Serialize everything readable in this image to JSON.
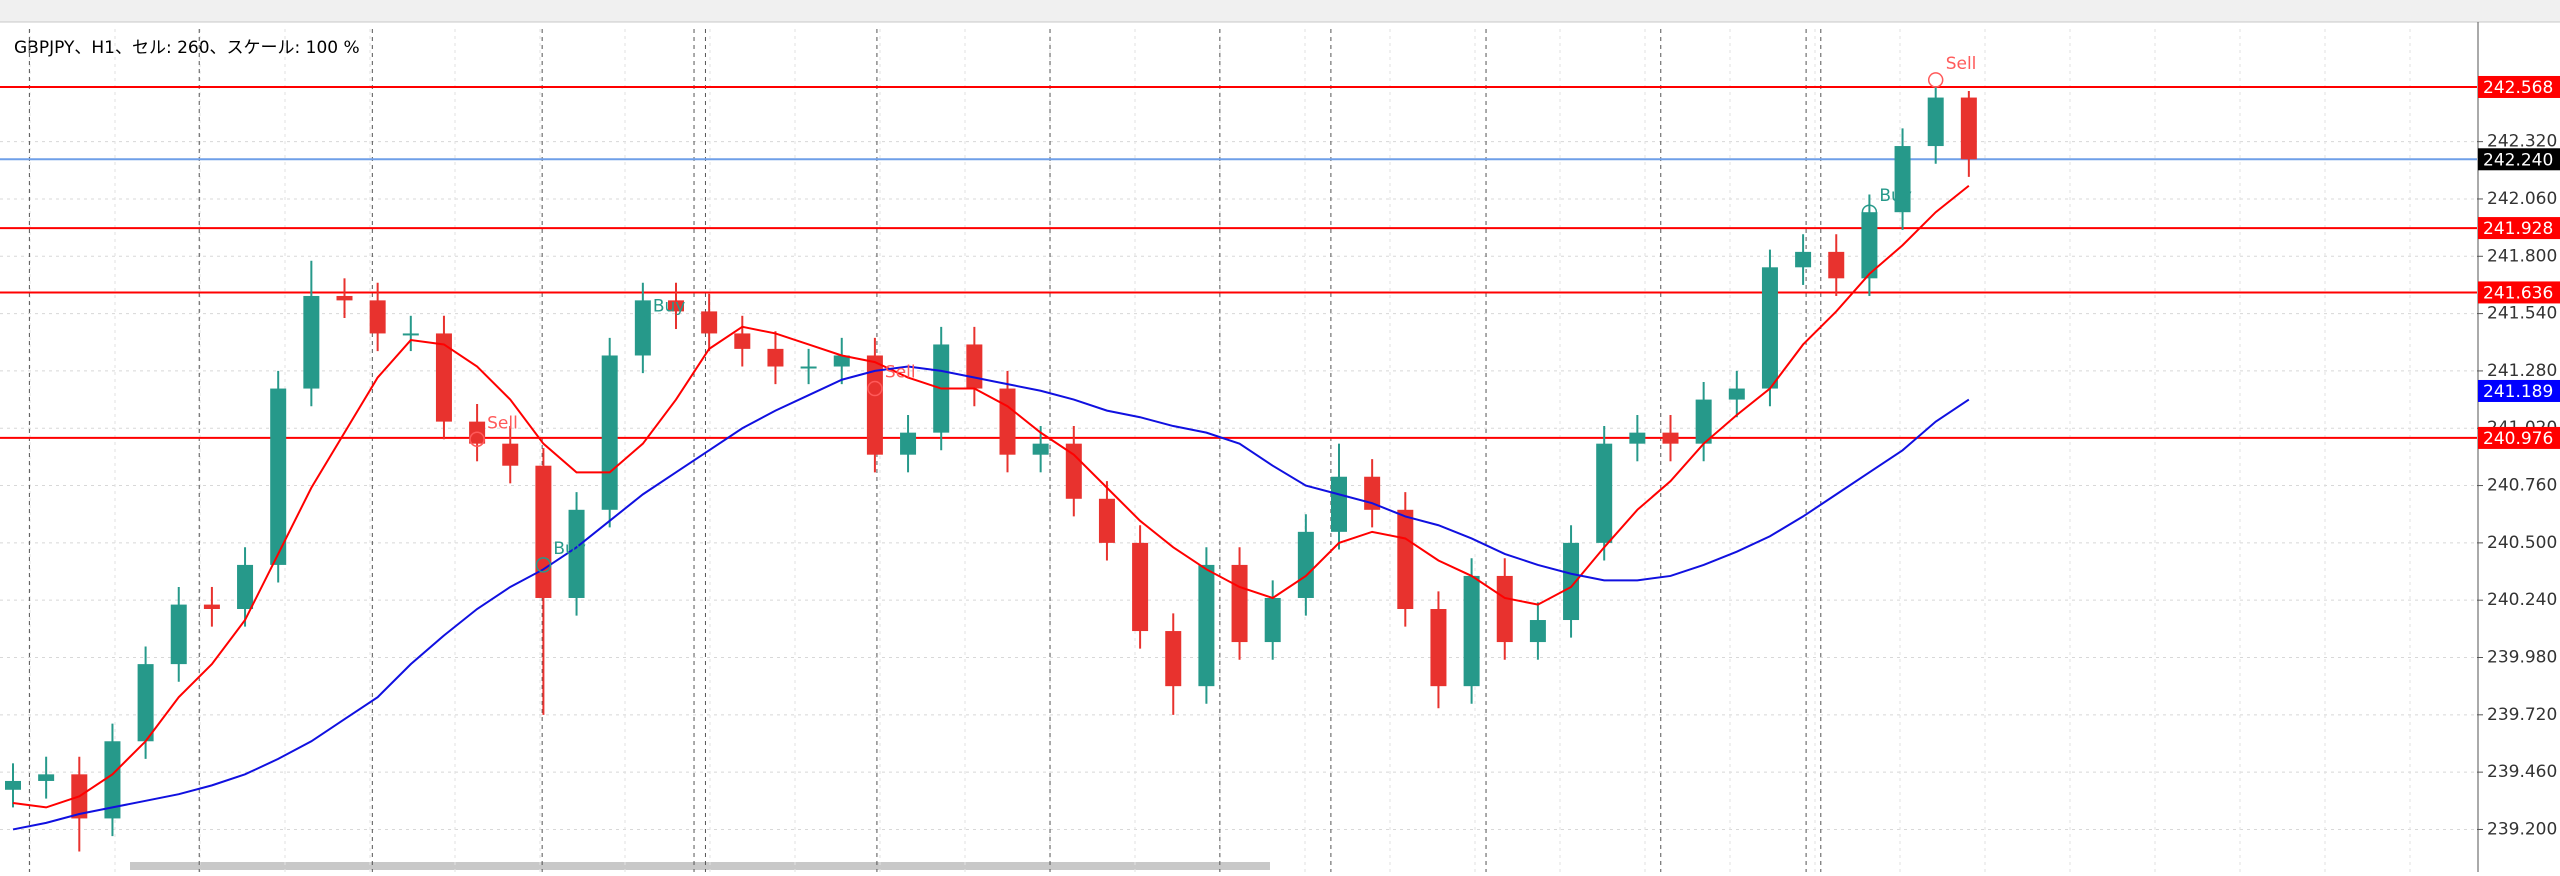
{
  "chart_data": {
    "type": "candlestick",
    "title": "GBPJPY、H1、セル: 260、スケール: 100 %",
    "up_color": "#26998a",
    "down_color": "#e8322e",
    "ylim": [
      239.007,
      242.831
    ],
    "yticks": [
      {
        "value": 242.32,
        "label": "242.320"
      },
      {
        "value": 242.06,
        "label": "242.060"
      },
      {
        "value": 241.8,
        "label": "241.800"
      },
      {
        "value": 241.54,
        "label": "241.540"
      },
      {
        "value": 241.28,
        "label": "241.280"
      },
      {
        "value": 241.02,
        "label": "241.020"
      },
      {
        "value": 240.76,
        "label": "240.760"
      },
      {
        "value": 240.5,
        "label": "240.500"
      },
      {
        "value": 240.24,
        "label": "240.240"
      },
      {
        "value": 239.98,
        "label": "239.980"
      },
      {
        "value": 239.72,
        "label": "239.720"
      },
      {
        "value": 239.46,
        "label": "239.460"
      },
      {
        "value": 239.2,
        "label": "239.200"
      }
    ],
    "grid": true,
    "open": [
      239.38,
      239.42,
      239.45,
      239.25,
      239.6,
      239.95,
      240.22,
      240.2,
      240.4,
      241.2,
      241.62,
      241.6,
      241.45,
      241.45,
      241.05,
      240.95,
      240.85,
      240.25,
      240.65,
      241.35,
      241.6,
      241.55,
      241.45,
      241.38,
      241.3,
      241.3,
      241.35,
      240.9,
      241.0,
      241.4,
      241.2,
      240.9,
      240.95,
      240.7,
      240.5,
      240.1,
      239.85,
      240.4,
      240.05,
      240.25,
      240.55,
      240.8,
      240.65,
      240.2,
      239.85,
      240.35,
      240.05,
      240.15,
      240.5,
      240.95,
      241.0,
      240.95,
      241.15,
      241.2,
      241.75,
      241.82,
      241.7,
      242.0,
      242.3,
      242.52
    ],
    "high": [
      239.5,
      239.53,
      239.53,
      239.68,
      240.03,
      240.3,
      240.3,
      240.48,
      241.28,
      241.78,
      241.7,
      241.68,
      241.53,
      241.53,
      241.13,
      241.03,
      240.93,
      240.73,
      241.43,
      241.68,
      241.68,
      241.63,
      241.53,
      241.46,
      241.38,
      241.43,
      241.43,
      241.08,
      241.48,
      241.48,
      241.28,
      241.03,
      241.03,
      240.78,
      240.58,
      240.18,
      240.48,
      240.48,
      240.33,
      240.63,
      240.95,
      240.88,
      240.73,
      240.28,
      240.43,
      240.43,
      240.23,
      240.58,
      241.03,
      241.08,
      241.08,
      241.23,
      241.28,
      241.83,
      241.9,
      241.9,
      242.08,
      242.38,
      242.57,
      242.55
    ],
    "low": [
      239.3,
      239.34,
      239.1,
      239.17,
      239.52,
      239.87,
      240.12,
      240.12,
      240.32,
      241.12,
      241.52,
      241.37,
      241.37,
      240.97,
      240.87,
      240.77,
      239.72,
      240.17,
      240.57,
      241.27,
      241.47,
      241.37,
      241.3,
      241.22,
      241.22,
      241.22,
      240.82,
      240.82,
      240.92,
      241.12,
      240.82,
      240.82,
      240.62,
      240.42,
      240.02,
      239.72,
      239.77,
      239.97,
      239.97,
      240.17,
      240.47,
      240.57,
      240.12,
      239.75,
      239.77,
      239.97,
      239.97,
      240.07,
      240.42,
      240.87,
      240.87,
      240.87,
      241.07,
      241.12,
      241.67,
      241.62,
      241.62,
      241.92,
      242.22,
      242.16
    ],
    "close": [
      239.42,
      239.45,
      239.25,
      239.6,
      239.95,
      240.22,
      240.2,
      240.4,
      241.2,
      241.62,
      241.6,
      241.45,
      241.45,
      241.05,
      240.95,
      240.85,
      240.25,
      240.65,
      241.35,
      241.6,
      241.55,
      241.45,
      241.38,
      241.3,
      241.3,
      241.35,
      240.9,
      241.0,
      241.4,
      241.2,
      240.9,
      240.95,
      240.7,
      240.5,
      240.1,
      239.85,
      240.4,
      240.05,
      240.25,
      240.55,
      240.8,
      240.65,
      240.2,
      239.85,
      240.35,
      240.05,
      240.15,
      240.5,
      240.95,
      241.0,
      240.95,
      241.15,
      241.2,
      241.75,
      241.82,
      241.7,
      242.0,
      242.3,
      242.52,
      242.24
    ],
    "ma_lines": [
      {
        "color": "#ff0000",
        "values": [
          239.32,
          239.3,
          239.35,
          239.45,
          239.6,
          239.8,
          239.95,
          240.15,
          240.45,
          240.75,
          241.0,
          241.25,
          241.42,
          241.4,
          241.3,
          241.15,
          240.95,
          240.82,
          240.82,
          240.95,
          241.15,
          241.38,
          241.48,
          241.45,
          241.4,
          241.35,
          241.32,
          241.25,
          241.2,
          241.2,
          241.12,
          241.0,
          240.9,
          240.75,
          240.6,
          240.48,
          240.38,
          240.3,
          240.25,
          240.35,
          240.5,
          240.55,
          240.52,
          240.42,
          240.35,
          240.25,
          240.22,
          240.3,
          240.48,
          240.65,
          240.78,
          240.95,
          241.08,
          241.2,
          241.4,
          241.55,
          241.72,
          241.85,
          242.0,
          242.12
        ]
      },
      {
        "color": "#1010e0",
        "values": [
          239.2,
          239.23,
          239.27,
          239.3,
          239.33,
          239.36,
          239.4,
          239.45,
          239.52,
          239.6,
          239.7,
          239.8,
          239.95,
          240.08,
          240.2,
          240.3,
          240.38,
          240.48,
          240.6,
          240.72,
          240.82,
          240.92,
          241.02,
          241.1,
          241.17,
          241.24,
          241.28,
          241.3,
          241.28,
          241.25,
          241.22,
          241.19,
          241.15,
          241.1,
          241.07,
          241.03,
          241.0,
          240.95,
          240.85,
          240.76,
          240.72,
          240.68,
          240.62,
          240.58,
          240.52,
          240.45,
          240.4,
          240.36,
          240.33,
          240.33,
          240.35,
          240.4,
          240.46,
          240.53,
          240.62,
          240.72,
          240.82,
          240.92,
          241.05,
          241.15
        ]
      }
    ],
    "price_lines": [
      {
        "value": 242.568,
        "label": "242.568",
        "color": "#ff0000"
      },
      {
        "value": 242.24,
        "label": "242.240",
        "color": "#6f9fe8",
        "label_color": "#000000"
      },
      {
        "value": 241.928,
        "label": "241.928",
        "color": "#ff0000"
      },
      {
        "value": 241.636,
        "label": "241.636",
        "color": "#ff0000"
      },
      {
        "value": 240.976,
        "label": "240.976",
        "color": "#ff0000"
      }
    ],
    "ma_label": {
      "value": 241.189,
      "label": "241.189",
      "color": "#0000ff"
    },
    "annotations": [
      {
        "text": "Sell",
        "x": 14,
        "y": 240.97,
        "color": "#ff5a5a"
      },
      {
        "text": "Buy",
        "x": 16,
        "y": 240.4,
        "color": "#26998a"
      },
      {
        "text": "Buy",
        "x": 19,
        "y": 241.5,
        "color": "#26998a"
      },
      {
        "text": "Sell",
        "x": 26,
        "y": 241.2,
        "color": "#ff5a5a"
      },
      {
        "text": "Buy",
        "x": 56,
        "y": 242.0,
        "color": "#26998a"
      },
      {
        "text": "Sell",
        "x": 58,
        "y": 242.6,
        "color": "#ff5a5a"
      }
    ]
  }
}
